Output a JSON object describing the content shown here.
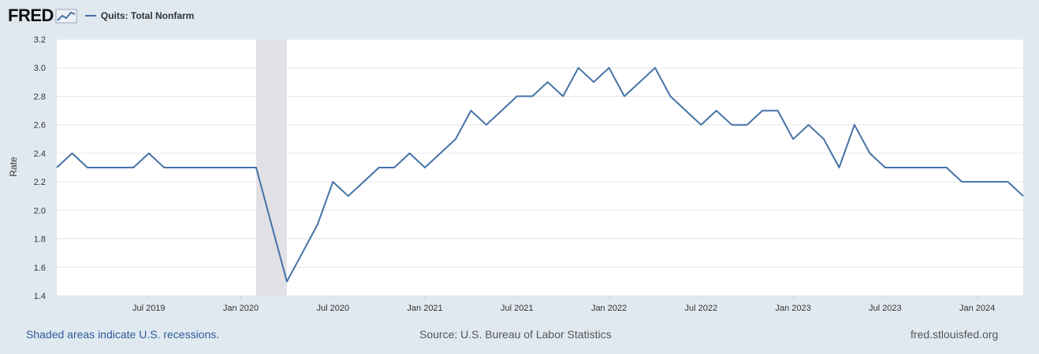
{
  "header": {
    "logo_text": "FRED",
    "legend_label": "Quits: Total Nonfarm"
  },
  "colors": {
    "series": "#4572a7",
    "recession": "#e1e0e5",
    "page_bg": "#e1e9f0",
    "plot_bg": "#ffffff",
    "grid": "#e6e6e6"
  },
  "chart_data": {
    "type": "line",
    "ylabel": "Rate",
    "ylim": [
      1.4,
      3.2
    ],
    "yticks": [
      "1.4",
      "1.6",
      "1.8",
      "2.0",
      "2.2",
      "2.4",
      "2.6",
      "2.8",
      "3.0",
      "3.2"
    ],
    "xlim": [
      "2019-01",
      "2024-04"
    ],
    "xticks": [
      {
        "date": "2019-07",
        "label": "Jul 2019"
      },
      {
        "date": "2020-01",
        "label": "Jan 2020"
      },
      {
        "date": "2020-07",
        "label": "Jul 2020"
      },
      {
        "date": "2021-01",
        "label": "Jan 2021"
      },
      {
        "date": "2021-07",
        "label": "Jul 2021"
      },
      {
        "date": "2022-01",
        "label": "Jan 2022"
      },
      {
        "date": "2022-07",
        "label": "Jul 2022"
      },
      {
        "date": "2023-01",
        "label": "Jan 2023"
      },
      {
        "date": "2023-07",
        "label": "Jul 2023"
      },
      {
        "date": "2024-01",
        "label": "Jan 2024"
      }
    ],
    "recessions": [
      {
        "start": "2020-02",
        "end": "2020-04"
      }
    ],
    "series": [
      {
        "name": "Quits: Total Nonfarm",
        "x": [
          "2019-01",
          "2019-02",
          "2019-03",
          "2019-04",
          "2019-05",
          "2019-06",
          "2019-07",
          "2019-08",
          "2019-09",
          "2019-10",
          "2019-11",
          "2019-12",
          "2020-01",
          "2020-02",
          "2020-03",
          "2020-04",
          "2020-05",
          "2020-06",
          "2020-07",
          "2020-08",
          "2020-09",
          "2020-10",
          "2020-11",
          "2020-12",
          "2021-01",
          "2021-02",
          "2021-03",
          "2021-04",
          "2021-05",
          "2021-06",
          "2021-07",
          "2021-08",
          "2021-09",
          "2021-10",
          "2021-11",
          "2021-12",
          "2022-01",
          "2022-02",
          "2022-03",
          "2022-04",
          "2022-05",
          "2022-06",
          "2022-07",
          "2022-08",
          "2022-09",
          "2022-10",
          "2022-11",
          "2022-12",
          "2023-01",
          "2023-02",
          "2023-03",
          "2023-04",
          "2023-05",
          "2023-06",
          "2023-07",
          "2023-08",
          "2023-09",
          "2023-10",
          "2023-11",
          "2023-12",
          "2024-01",
          "2024-02",
          "2024-03",
          "2024-04"
        ],
        "y": [
          2.3,
          2.4,
          2.3,
          2.3,
          2.3,
          2.3,
          2.4,
          2.3,
          2.3,
          2.3,
          2.3,
          2.3,
          2.3,
          2.3,
          1.9,
          1.5,
          1.7,
          1.9,
          2.2,
          2.1,
          2.2,
          2.3,
          2.3,
          2.4,
          2.3,
          2.4,
          2.5,
          2.7,
          2.6,
          2.7,
          2.8,
          2.8,
          2.9,
          2.8,
          3.0,
          2.9,
          3.0,
          2.8,
          2.9,
          3.0,
          2.8,
          2.7,
          2.6,
          2.7,
          2.6,
          2.6,
          2.7,
          2.7,
          2.5,
          2.6,
          2.5,
          2.3,
          2.6,
          2.4,
          2.3,
          2.3,
          2.3,
          2.3,
          2.3,
          2.2,
          2.2,
          2.2,
          2.2,
          2.1
        ]
      }
    ]
  },
  "footer": {
    "recession_note": "Shaded areas indicate U.S. recessions.",
    "source": "Source: U.S. Bureau of Labor Statistics",
    "site": "fred.stlouisfed.org"
  }
}
